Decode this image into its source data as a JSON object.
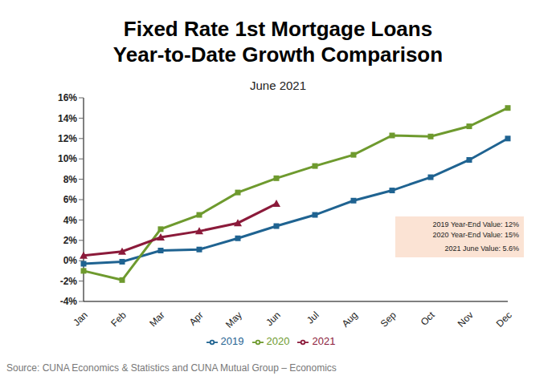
{
  "chart_data": {
    "type": "line",
    "title": "Fixed Rate 1st Mortgage Loans\nYear-to-Date Growth Comparison",
    "subtitle": "June 2021",
    "categories": [
      "Jan",
      "Feb",
      "Mar",
      "Apr",
      "May",
      "Jun",
      "Jul",
      "Aug",
      "Sep",
      "Oct",
      "Nov",
      "Dec"
    ],
    "series": [
      {
        "name": "2019",
        "color": "#1f6391",
        "marker": "square",
        "values": [
          -0.3,
          -0.1,
          1.0,
          1.1,
          2.2,
          3.4,
          4.5,
          5.9,
          6.9,
          8.2,
          9.9,
          12.0
        ]
      },
      {
        "name": "2020",
        "color": "#6e9a2e",
        "marker": "square",
        "values": [
          -1.0,
          -1.9,
          3.1,
          4.5,
          6.7,
          8.1,
          9.3,
          10.4,
          12.3,
          12.2,
          13.2,
          15.0
        ]
      },
      {
        "name": "2021",
        "color": "#8b1a3a",
        "marker": "triangle",
        "values": [
          0.5,
          0.9,
          2.3,
          2.9,
          3.7,
          5.6,
          null,
          null,
          null,
          null,
          null,
          null
        ]
      }
    ],
    "ylim": [
      -4,
      16
    ],
    "yticks": [
      {
        "value": -4,
        "label": "-4%"
      },
      {
        "value": -2,
        "label": "-2%"
      },
      {
        "value": 0,
        "label": "0%"
      },
      {
        "value": 2,
        "label": "2%"
      },
      {
        "value": 4,
        "label": "4%"
      },
      {
        "value": 6,
        "label": "6%"
      },
      {
        "value": 8,
        "label": "8%"
      },
      {
        "value": 10,
        "label": "10%"
      },
      {
        "value": 12,
        "label": "12%"
      },
      {
        "value": 14,
        "label": "14%"
      },
      {
        "value": 16,
        "label": "16%"
      }
    ],
    "grid": false,
    "legend": "bottom",
    "annotations": [
      "2019 Year-End Value: 12%",
      "2020 Year-End Value: 15%",
      "2021 June Value: 5.6%"
    ],
    "source": "Source: CUNA Economics & Statistics and CUNA Mutual Group – Economics"
  }
}
